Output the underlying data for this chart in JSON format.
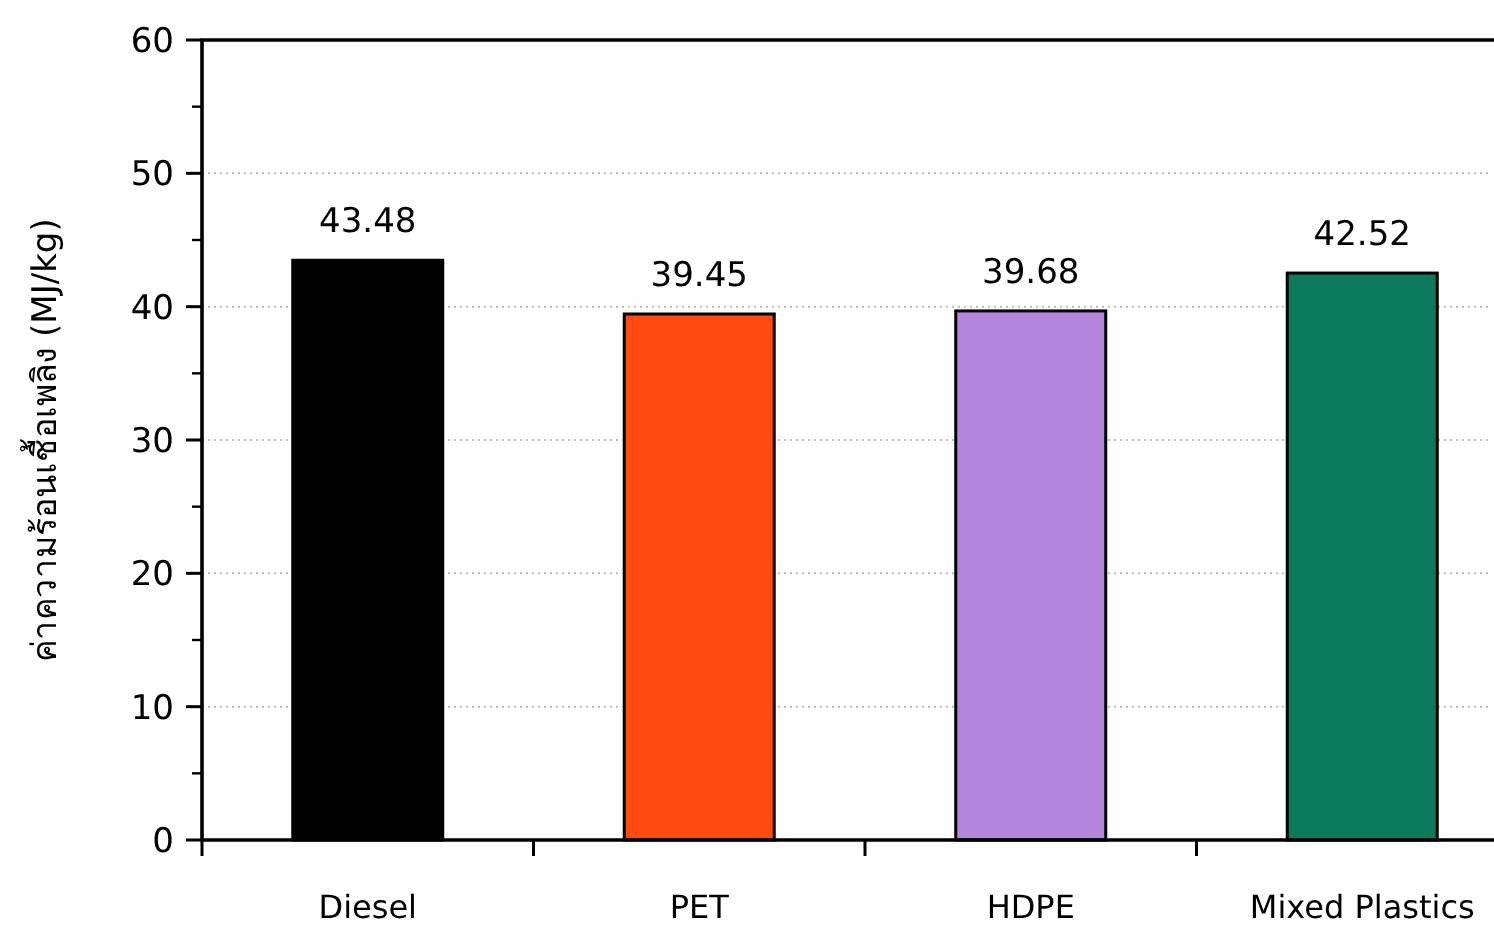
{
  "chart_data": {
    "type": "bar",
    "ylabel": "ค่าความร้อนเชื้อเพลิง (MJ/kg)",
    "categories": [
      "Diesel",
      "PET",
      "HDPE",
      "Mixed Plastics"
    ],
    "values": [
      43.48,
      39.45,
      39.68,
      42.52
    ],
    "colors": [
      "#000000",
      "#ff4a10",
      "#b585dc",
      "#0c7a5c"
    ],
    "ylim": [
      0,
      60
    ],
    "yticks": [
      0,
      10,
      20,
      30,
      40,
      50,
      60
    ],
    "grid": "y",
    "data_labels": true
  }
}
